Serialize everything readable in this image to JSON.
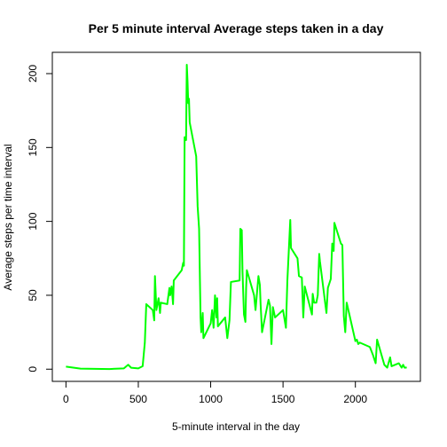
{
  "chart_data": {
    "type": "line",
    "title": "Per 5 minute interval Average steps taken in a day",
    "xlabel": "5-minute interval in the day",
    "ylabel": "Average steps per time interval",
    "x": [
      0,
      100,
      200,
      300,
      400,
      430,
      450,
      500,
      530,
      545,
      555,
      600,
      610,
      615,
      625,
      640,
      650,
      655,
      700,
      715,
      720,
      730,
      740,
      745,
      800,
      810,
      815,
      820,
      830,
      835,
      840,
      845,
      850,
      855,
      900,
      910,
      920,
      930,
      935,
      945,
      950,
      1000,
      1010,
      1020,
      1030,
      1040,
      1045,
      1050,
      1100,
      1115,
      1130,
      1140,
      1200,
      1205,
      1215,
      1220,
      1230,
      1240,
      1245,
      1250,
      1300,
      1310,
      1330,
      1340,
      1345,
      1355,
      1400,
      1410,
      1420,
      1430,
      1445,
      1500,
      1520,
      1530,
      1550,
      1555,
      1600,
      1610,
      1630,
      1640,
      1650,
      1700,
      1705,
      1715,
      1730,
      1740,
      1750,
      1755,
      1800,
      1810,
      1830,
      1840,
      1850,
      1855,
      1900,
      1910,
      1920,
      1930,
      1940,
      2000,
      2010,
      2020,
      2030,
      2100,
      2120,
      2140,
      2150,
      2200,
      2220,
      2240,
      2250,
      2300,
      2320,
      2330,
      2340,
      2355
    ],
    "series": [
      {
        "name": "Average steps",
        "color": "#00ff00",
        "values": [
          1.7,
          0.4,
          0.2,
          0.1,
          0.5,
          3,
          1,
          0.5,
          2,
          18,
          44,
          40,
          33,
          63,
          40,
          48,
          38,
          45,
          44,
          55,
          50,
          56,
          44,
          60,
          67,
          72,
          70,
          157,
          155,
          206,
          195,
          180,
          183,
          167,
          144,
          110,
          95,
          35,
          25,
          38,
          21,
          31,
          40,
          28,
          50,
          35,
          48,
          29,
          35,
          21,
          33,
          59,
          60,
          95,
          94,
          66,
          37,
          32,
          55,
          67,
          50,
          40,
          63,
          57,
          44,
          25,
          47,
          43,
          17,
          42,
          35,
          40,
          28,
          60,
          101,
          82,
          75,
          63,
          62,
          35,
          56,
          37,
          51,
          45,
          45,
          50,
          78,
          73,
          38,
          55,
          61,
          85,
          80,
          99,
          85,
          84,
          36,
          25,
          45,
          19,
          20,
          17,
          18,
          15,
          10,
          4,
          20,
          3,
          1,
          8,
          2,
          4,
          1,
          3,
          1,
          1.1
        ]
      }
    ],
    "xlim": [
      -94.2,
      2449.2
    ],
    "xticks": [
      0,
      500,
      1000,
      1500,
      2000
    ],
    "ylim": [
      -8.25,
      214.4
    ],
    "yticks": [
      0,
      50,
      100,
      150,
      200
    ]
  }
}
